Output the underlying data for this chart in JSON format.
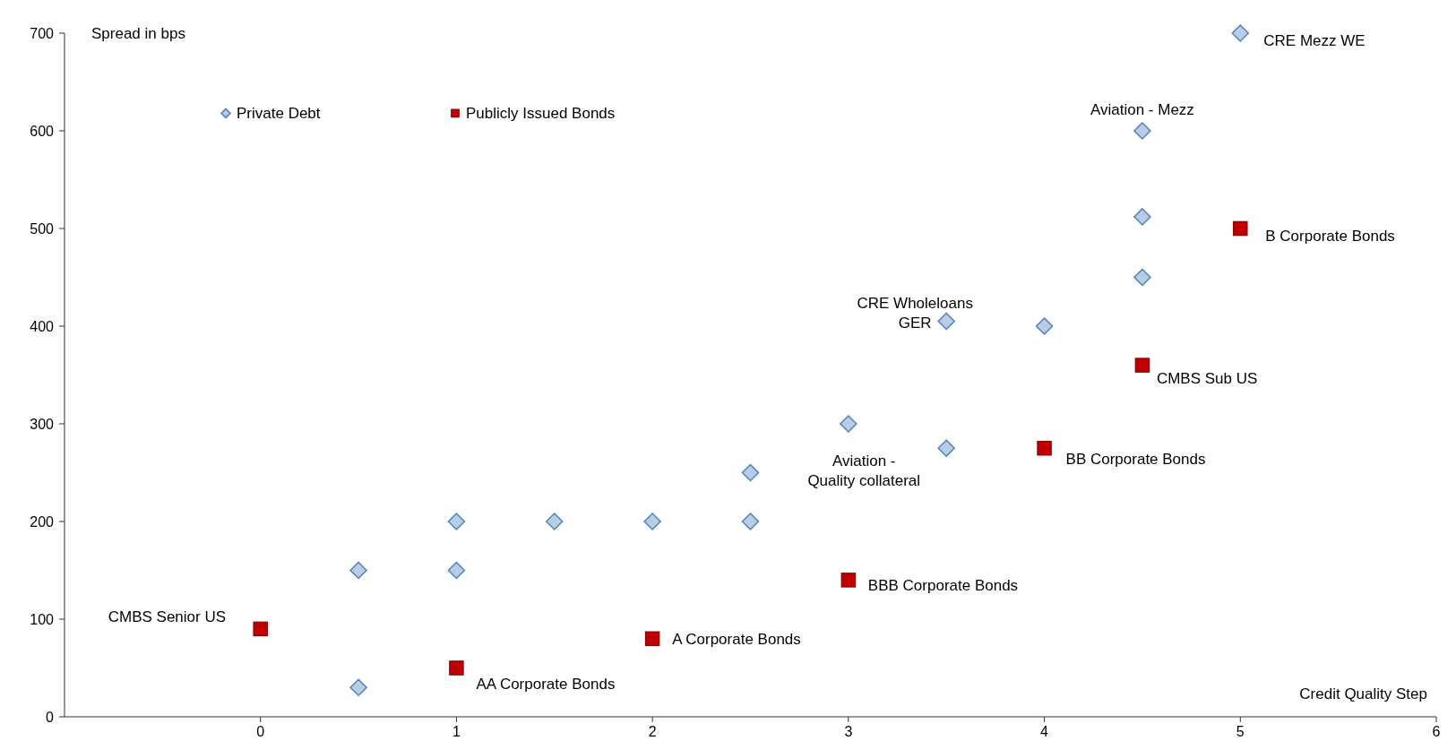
{
  "chart_data": {
    "type": "scatter",
    "xlabel": "Credit Quality Step",
    "ylabel": "Spread in bps",
    "xlim": [
      -1,
      6
    ],
    "xticks": [
      0,
      1,
      2,
      3,
      4,
      5,
      6
    ],
    "ylim": [
      0,
      700
    ],
    "yticks": [
      0,
      100,
      200,
      300,
      400,
      500,
      600,
      700
    ],
    "grid": false,
    "legend": "top left",
    "series": [
      {
        "name": "Private Debt",
        "color": "#b8cce4",
        "marker": "diamond",
        "x": [
          0.5,
          0.5,
          1,
          1,
          1.5,
          2,
          2.5,
          2.5,
          3,
          3.5,
          3.5,
          4,
          4.5,
          4.5,
          4.5,
          5
        ],
        "values": [
          30,
          150,
          150,
          200,
          200,
          200,
          200,
          250,
          300,
          275,
          405,
          400,
          450,
          512,
          600,
          700
        ]
      },
      {
        "name": "Publicly Issued Bonds",
        "color": "#c00000",
        "marker": "square",
        "x": [
          0,
          1,
          2,
          3,
          4,
          4.5,
          5
        ],
        "values": [
          90,
          50,
          80,
          140,
          275,
          360,
          500
        ]
      }
    ],
    "annotations": [
      {
        "text": "CRE Mezz WE",
        "x": 5,
        "y": 700
      },
      {
        "text": "Aviation - Mezz",
        "x": 4.5,
        "y": 600
      },
      {
        "text": "B Corporate Bonds",
        "x": 5,
        "y": 500
      },
      {
        "text": "CRE Wholeloans\nGER",
        "x": 3.5,
        "y": 405
      },
      {
        "text": "CMBS Sub US",
        "x": 4.5,
        "y": 360
      },
      {
        "text": "BB Corporate Bonds",
        "x": 4,
        "y": 275
      },
      {
        "text": "Aviation -\nQuality collateral",
        "x": 3.5,
        "y": 275
      },
      {
        "text": "BBB Corporate Bonds",
        "x": 3,
        "y": 140
      },
      {
        "text": "A Corporate Bonds",
        "x": 2,
        "y": 80
      },
      {
        "text": "AA Corporate Bonds",
        "x": 1,
        "y": 50
      },
      {
        "text": "CMBS Senior US",
        "x": 0,
        "y": 90
      }
    ]
  }
}
